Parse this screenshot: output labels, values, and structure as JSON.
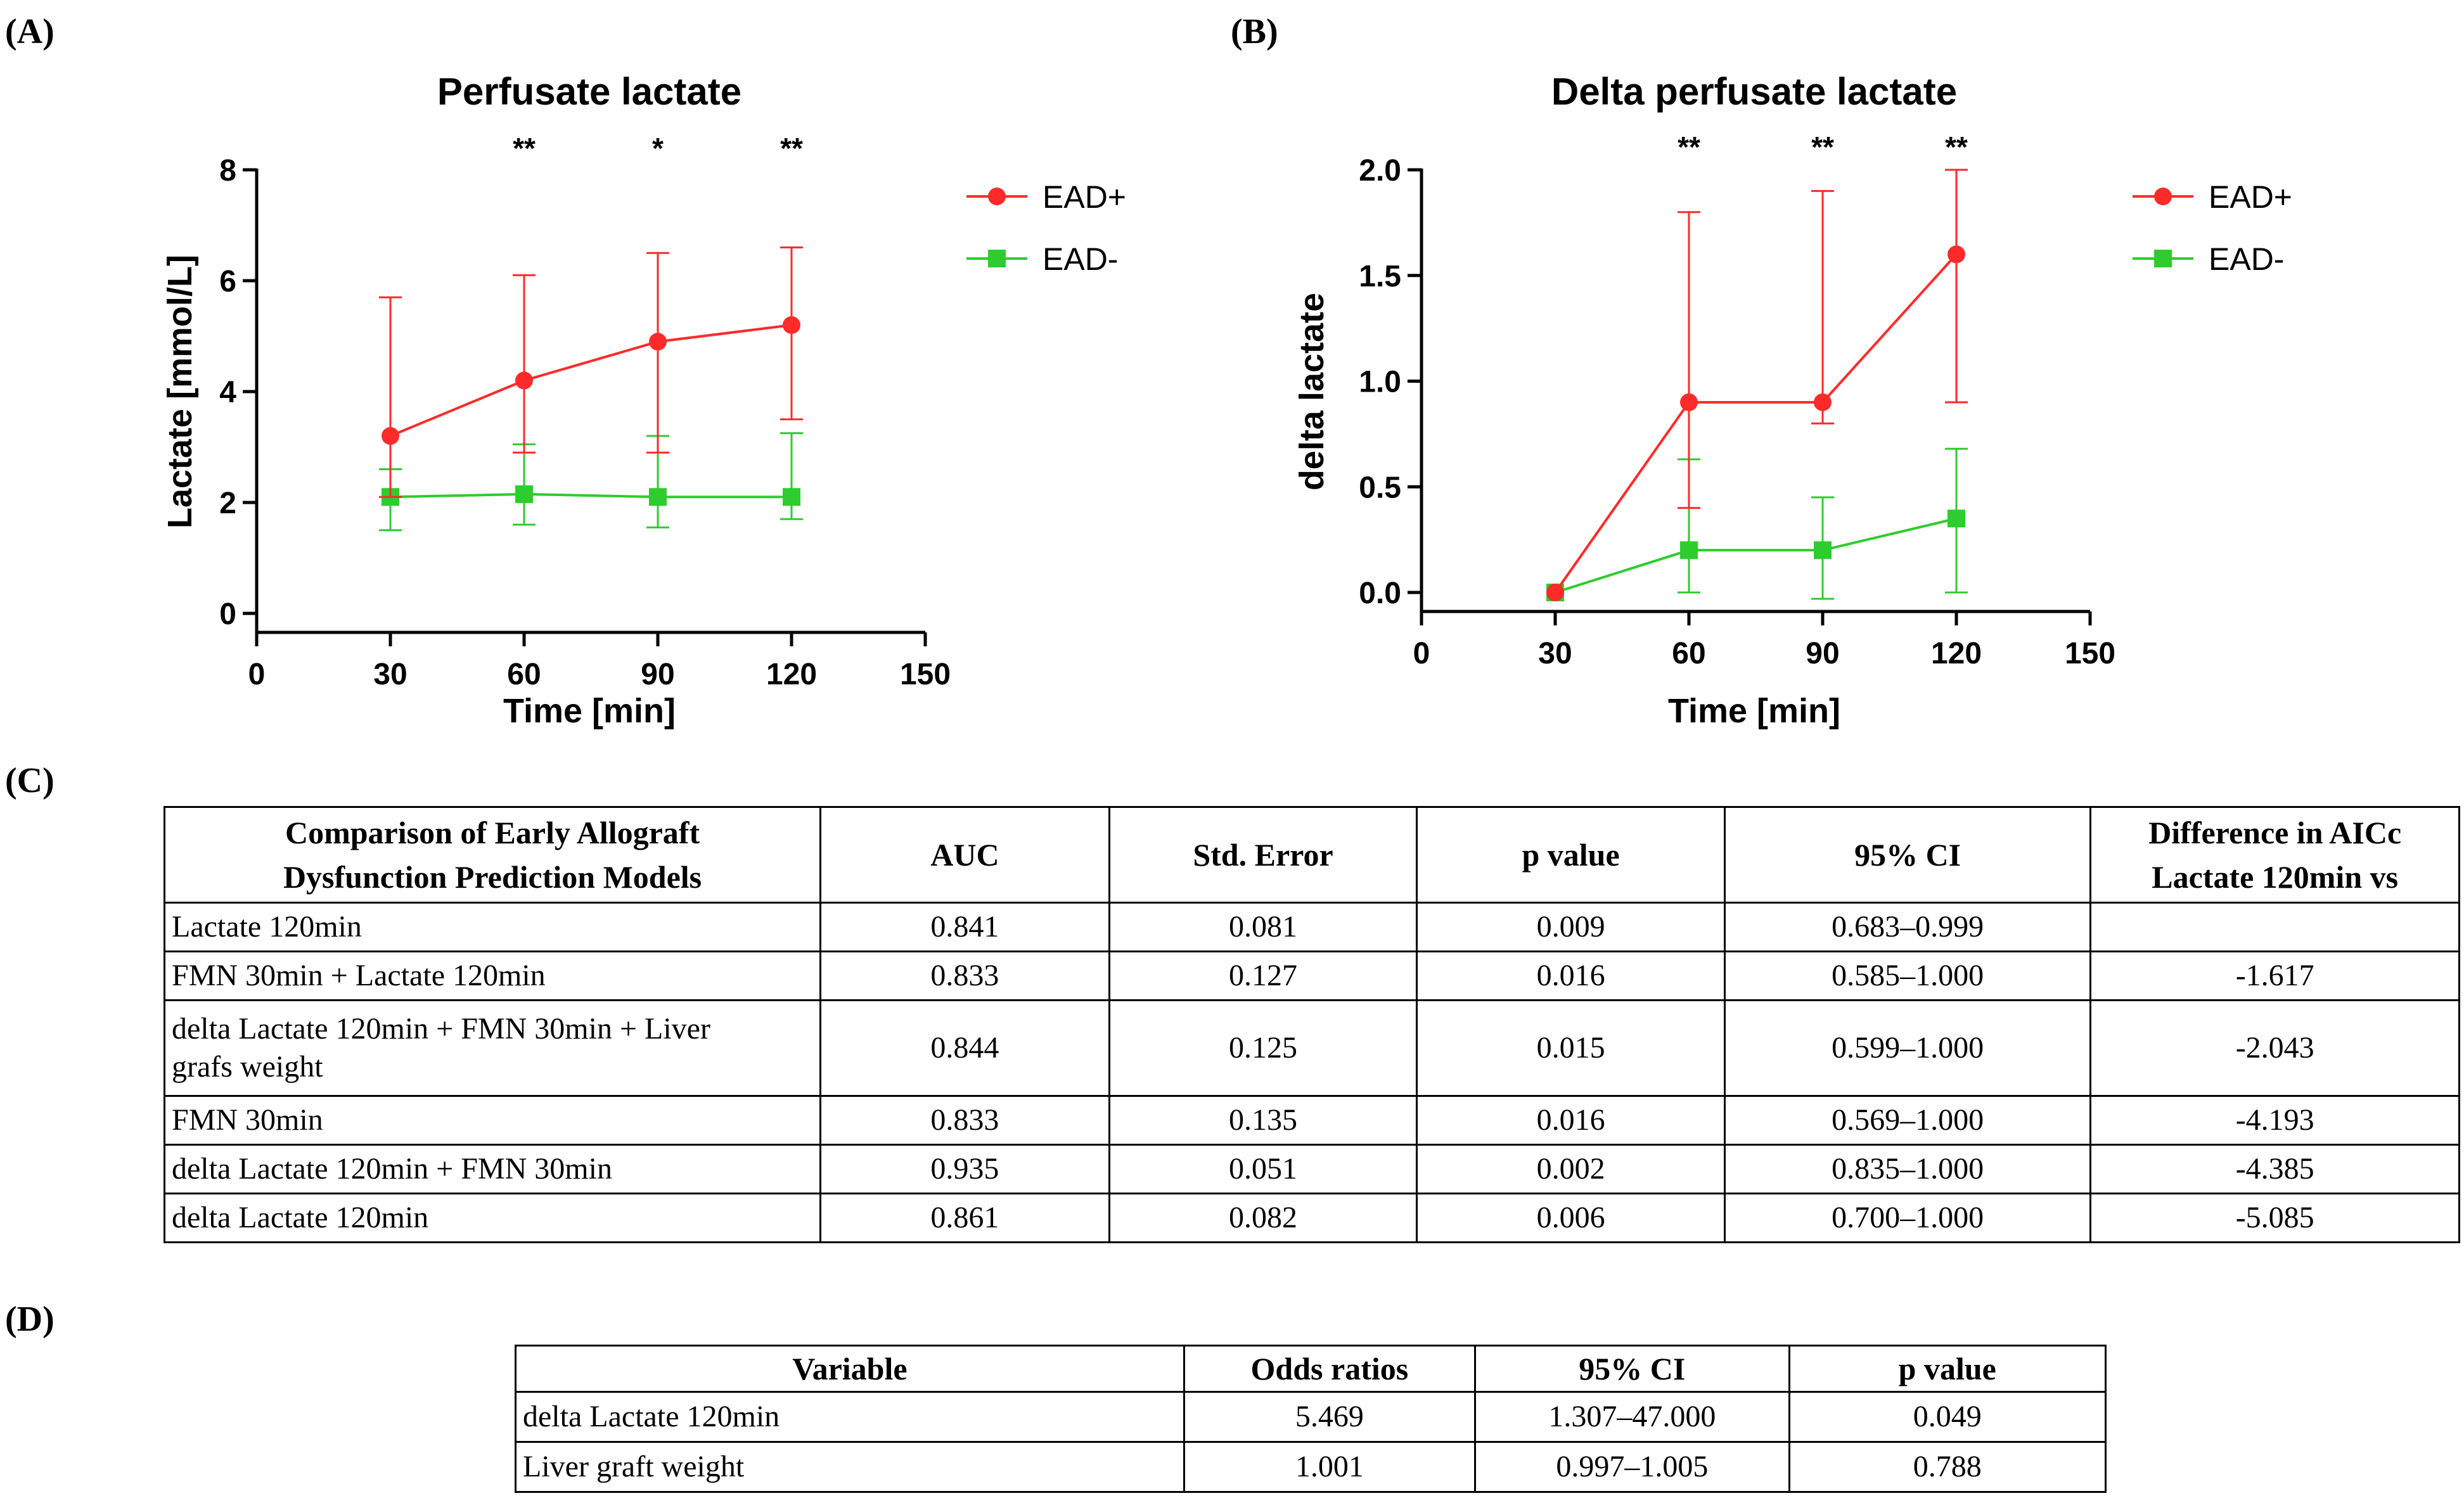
{
  "panel_labels": {
    "a": "(A)",
    "b": "(B)",
    "c": "(C)",
    "d": "(D)"
  },
  "colors": {
    "ead_pos": "#ff2a2a",
    "ead_neg": "#2ecc2e"
  },
  "chart_data": [
    {
      "type": "line",
      "title": "Perfusate lactate",
      "xlabel": "Time [min]",
      "ylabel": "Lactate [mmol/L]",
      "xlim": [
        0,
        150
      ],
      "ylim": [
        0,
        8
      ],
      "xticks": [
        "0",
        "30",
        "60",
        "90",
        "120",
        "150"
      ],
      "yticks": [
        "0",
        "2",
        "4",
        "6",
        "8"
      ],
      "x": [
        30,
        60,
        90,
        120
      ],
      "series": [
        {
          "name": "EAD+",
          "marker": "circle",
          "values": [
            3.2,
            4.2,
            4.9,
            5.2
          ],
          "err_low": [
            2.1,
            2.9,
            2.9,
            3.5
          ],
          "err_high": [
            5.7,
            6.1,
            6.5,
            6.6
          ]
        },
        {
          "name": "EAD-",
          "marker": "square",
          "values": [
            2.1,
            2.15,
            2.1,
            2.1
          ],
          "err_low": [
            1.5,
            1.6,
            1.55,
            1.7
          ],
          "err_high": [
            2.6,
            3.05,
            3.2,
            3.25
          ]
        }
      ],
      "significance": [
        {
          "x": 60,
          "label": "**"
        },
        {
          "x": 90,
          "label": "*"
        },
        {
          "x": 120,
          "label": "**"
        }
      ],
      "legend_position": "right"
    },
    {
      "type": "line",
      "title": "Delta perfusate lactate",
      "xlabel": "Time [min]",
      "ylabel": "delta lactate",
      "xlim": [
        0,
        150
      ],
      "ylim": [
        0,
        2
      ],
      "xticks": [
        "0",
        "30",
        "60",
        "90",
        "120",
        "150"
      ],
      "yticks": [
        "0.0",
        "0.5",
        "1.0",
        "1.5",
        "2.0"
      ],
      "x": [
        30,
        60,
        90,
        120
      ],
      "series": [
        {
          "name": "EAD+",
          "marker": "circle",
          "values": [
            0.0,
            0.9,
            0.9,
            1.6
          ],
          "err_low": [
            0.0,
            0.4,
            0.8,
            0.9
          ],
          "err_high": [
            0.0,
            1.8,
            1.9,
            2.0
          ]
        },
        {
          "name": "EAD-",
          "marker": "square",
          "values": [
            0.0,
            0.2,
            0.2,
            0.35
          ],
          "err_low": [
            0.0,
            0.0,
            -0.03,
            0.0
          ],
          "err_high": [
            0.0,
            0.63,
            0.45,
            0.68
          ]
        }
      ],
      "significance": [
        {
          "x": 60,
          "label": "**"
        },
        {
          "x": 90,
          "label": "**"
        },
        {
          "x": 120,
          "label": "**"
        }
      ],
      "legend_position": "right"
    }
  ],
  "table_c": {
    "headers": [
      [
        "Comparison of Early Allograft",
        "Dysfunction Prediction Models"
      ],
      [
        "AUC"
      ],
      [
        "Std. Error"
      ],
      [
        "p value"
      ],
      [
        "95% CI"
      ],
      [
        "Difference in AICc",
        "Lactate 120min vs"
      ]
    ],
    "rows": [
      {
        "model": [
          "Lactate 120min"
        ],
        "auc": "0.841",
        "se": "0.081",
        "p": "0.009",
        "ci": "0.683–0.999",
        "diff": ""
      },
      {
        "model": [
          "FMN 30min + Lactate 120min"
        ],
        "auc": "0.833",
        "se": "0.127",
        "p": "0.016",
        "ci": "0.585–1.000",
        "diff": "-1.617"
      },
      {
        "model": [
          "delta Lactate 120min + FMN 30min + Liver",
          "grafs weight"
        ],
        "auc": "0.844",
        "se": "0.125",
        "p": "0.015",
        "ci": "0.599–1.000",
        "diff": "-2.043"
      },
      {
        "model": [
          "FMN 30min"
        ],
        "auc": "0.833",
        "se": "0.135",
        "p": "0.016",
        "ci": "0.569–1.000",
        "diff": "-4.193"
      },
      {
        "model": [
          "delta Lactate 120min + FMN 30min"
        ],
        "auc": "0.935",
        "se": "0.051",
        "p": "0.002",
        "ci": "0.835–1.000",
        "diff": "-4.385"
      },
      {
        "model": [
          "delta Lactate 120min"
        ],
        "auc": "0.861",
        "se": "0.082",
        "p": "0.006",
        "ci": "0.700–1.000",
        "diff": "-5.085"
      }
    ]
  },
  "table_d": {
    "headers": [
      "Variable",
      "Odds ratios",
      "95% CI",
      "p value"
    ],
    "rows": [
      {
        "variable": "delta Lactate 120min",
        "or": "5.469",
        "ci": "1.307–47.000",
        "p": "0.049"
      },
      {
        "variable": "Liver graft weight",
        "or": "1.001",
        "ci": "0.997–1.005",
        "p": "0.788"
      }
    ]
  }
}
